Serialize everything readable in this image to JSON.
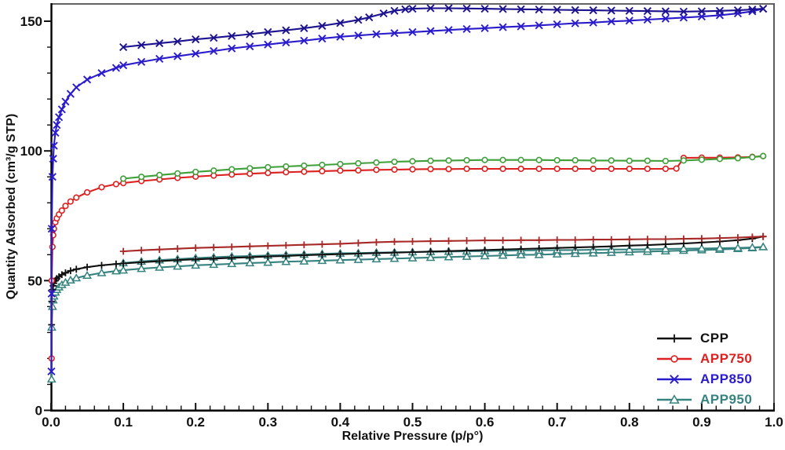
{
  "figure": {
    "xlabel": "Relative Pressure (p/p°)",
    "ylabel": "Quantity Adsorbed (cm³/g STP)"
  },
  "chart_data": {
    "type": "line",
    "title": "",
    "xlabel": "Relative Pressure (p/p°)",
    "ylabel": "Quantity Adsorbed (cm³/g STP)",
    "xlim": [
      0,
      1.0
    ],
    "ylim": [
      0,
      157
    ],
    "x_ticks": [
      0.0,
      0.1,
      0.2,
      0.3,
      0.4,
      0.5,
      0.6,
      0.7,
      0.8,
      0.9,
      1.0
    ],
    "x_tick_labels": [
      "0.0",
      "0.1",
      "0.2",
      "0.3",
      "0.4",
      "0.5",
      "0.6",
      "0.7",
      "0.8",
      "0.9",
      "1.0"
    ],
    "y_ticks": [
      0,
      50,
      100,
      150
    ],
    "y_tick_labels": [
      "0",
      "50",
      "100",
      "150"
    ],
    "x_minor_step": 0.02,
    "y_minor_step": 10,
    "grid": false,
    "axis_color": "#000000",
    "frame_color": "#4d4d4d",
    "legend_position": "lower-right",
    "legend": [
      {
        "label": "CPP",
        "color": "#111111",
        "marker": "plus"
      },
      {
        "label": "APP750",
        "color": "#dd2020",
        "marker": "circle"
      },
      {
        "label": "APP850",
        "color": "#2a1ccc",
        "marker": "x"
      },
      {
        "label": "APP950",
        "color": "#35827f",
        "marker": "triangle"
      }
    ],
    "series": [
      {
        "name": "APP950-adsorption",
        "branch": "adsorption",
        "color": "#35827f",
        "marker": "triangle",
        "x": [
          0.0008,
          0.001,
          0.002,
          0.003,
          0.004,
          0.006,
          0.008,
          0.011,
          0.015,
          0.02,
          0.027,
          0.035,
          0.05,
          0.07,
          0.09,
          0.1,
          0.125,
          0.15,
          0.175,
          0.2,
          0.225,
          0.25,
          0.275,
          0.3,
          0.325,
          0.35,
          0.375,
          0.4,
          0.425,
          0.45,
          0.475,
          0.5,
          0.525,
          0.55,
          0.575,
          0.6,
          0.625,
          0.65,
          0.675,
          0.7,
          0.725,
          0.75,
          0.775,
          0.8,
          0.825,
          0.85,
          0.875,
          0.9,
          0.925,
          0.95,
          0.97,
          0.985
        ],
        "y": [
          12,
          32,
          40,
          42.5,
          44,
          45.5,
          46.5,
          47.5,
          48.4,
          49.3,
          50.2,
          51,
          52,
          53,
          53.7,
          54,
          54.6,
          55.1,
          55.5,
          55.9,
          56.2,
          56.5,
          56.8,
          57,
          57.3,
          57.5,
          57.7,
          57.9,
          58.1,
          58.3,
          58.5,
          58.7,
          58.9,
          59.1,
          59.3,
          59.5,
          59.7,
          59.9,
          60,
          60.2,
          60.4,
          60.6,
          60.8,
          61,
          61.2,
          61.4,
          61.6,
          61.8,
          62,
          62.3,
          62.6,
          63
        ]
      },
      {
        "name": "APP950-desorption",
        "branch": "desorption",
        "color": "#35827f",
        "marker": "triangle",
        "x": [
          0.1,
          0.125,
          0.15,
          0.175,
          0.2,
          0.225,
          0.25,
          0.275,
          0.3,
          0.325,
          0.35,
          0.375,
          0.4,
          0.425,
          0.45,
          0.475,
          0.5,
          0.525,
          0.55,
          0.575,
          0.6,
          0.625,
          0.65,
          0.675,
          0.7,
          0.725,
          0.75,
          0.775,
          0.8,
          0.825,
          0.85,
          0.875,
          0.9,
          0.925,
          0.95,
          0.97,
          0.985
        ],
        "y": [
          56.8,
          57.4,
          57.9,
          58.3,
          58.7,
          59,
          59.3,
          59.5,
          59.7,
          59.9,
          60.1,
          60.3,
          60.5,
          60.6,
          60.8,
          60.9,
          61,
          61.1,
          61.2,
          61.3,
          61.4,
          61.5,
          61.6,
          61.7,
          61.8,
          61.8,
          61.9,
          62,
          62,
          62.1,
          62.2,
          62.3,
          62.4,
          62.5,
          62.6,
          62.8,
          63
        ]
      },
      {
        "name": "CPP-adsorption",
        "branch": "adsorption",
        "color": "#111111",
        "marker": "plus",
        "x": [
          0.0008,
          0.001,
          0.002,
          0.003,
          0.004,
          0.006,
          0.008,
          0.011,
          0.015,
          0.02,
          0.027,
          0.035,
          0.05,
          0.07,
          0.09,
          0.1,
          0.125,
          0.15,
          0.175,
          0.2,
          0.225,
          0.25,
          0.275,
          0.3,
          0.325,
          0.35,
          0.375,
          0.4,
          0.425,
          0.45,
          0.475,
          0.5,
          0.525,
          0.55,
          0.575,
          0.6,
          0.625,
          0.65,
          0.675,
          0.7,
          0.725,
          0.75,
          0.775,
          0.8,
          0.825,
          0.85,
          0.875,
          0.9,
          0.925,
          0.95,
          0.97,
          0.985
        ],
        "y": [
          33,
          42,
          46.5,
          48,
          49,
          50,
          50.8,
          51.5,
          52.3,
          53,
          53.8,
          54.4,
          55.2,
          55.9,
          56.4,
          56.6,
          57.1,
          57.5,
          57.9,
          58.2,
          58.5,
          58.8,
          59,
          59.3,
          59.5,
          59.8,
          60,
          60.2,
          60.4,
          60.6,
          60.8,
          61,
          61.2,
          61.4,
          61.6,
          61.8,
          62,
          62.2,
          62.4,
          62.6,
          62.8,
          63,
          63.2,
          63.5,
          63.7,
          64,
          64.3,
          64.7,
          65.1,
          65.6,
          66.2,
          67
        ]
      },
      {
        "name": "CPP-desorption",
        "branch": "desorption",
        "color": "#a82a28",
        "marker": "plus",
        "x": [
          0.1,
          0.125,
          0.15,
          0.175,
          0.2,
          0.225,
          0.25,
          0.275,
          0.3,
          0.325,
          0.35,
          0.375,
          0.4,
          0.425,
          0.45,
          0.475,
          0.5,
          0.525,
          0.55,
          0.575,
          0.6,
          0.625,
          0.65,
          0.675,
          0.7,
          0.725,
          0.75,
          0.775,
          0.8,
          0.825,
          0.85,
          0.875,
          0.9,
          0.925,
          0.95,
          0.97,
          0.985
        ],
        "y": [
          61.3,
          61.7,
          62,
          62.3,
          62.6,
          62.8,
          63,
          63.2,
          63.4,
          63.6,
          63.8,
          64,
          64.2,
          64.5,
          64.8,
          65,
          65.1,
          65.2,
          65.3,
          65.4,
          65.5,
          65.5,
          65.6,
          65.6,
          65.7,
          65.7,
          65.8,
          65.8,
          65.9,
          66,
          66,
          66.1,
          66.2,
          66.4,
          66.6,
          66.8,
          67
        ]
      },
      {
        "name": "APP750-adsorption",
        "branch": "adsorption",
        "color": "#dd2020",
        "marker": "circle",
        "x": [
          0.0008,
          0.001,
          0.002,
          0.003,
          0.004,
          0.006,
          0.008,
          0.011,
          0.015,
          0.02,
          0.027,
          0.035,
          0.05,
          0.07,
          0.09,
          0.1,
          0.125,
          0.15,
          0.175,
          0.2,
          0.225,
          0.25,
          0.275,
          0.3,
          0.325,
          0.35,
          0.375,
          0.4,
          0.425,
          0.45,
          0.475,
          0.5,
          0.525,
          0.55,
          0.575,
          0.6,
          0.625,
          0.65,
          0.675,
          0.7,
          0.725,
          0.75,
          0.775,
          0.8,
          0.825,
          0.85,
          0.865,
          0.875,
          0.9,
          0.925,
          0.95,
          0.97,
          0.985
        ],
        "y": [
          20,
          50,
          63,
          67.5,
          70,
          72.5,
          74,
          75.5,
          77,
          78.8,
          80.5,
          82,
          84,
          86,
          87.2,
          87.6,
          88.4,
          89,
          89.6,
          90.1,
          90.5,
          90.9,
          91.2,
          91.5,
          91.8,
          92,
          92.2,
          92.4,
          92.5,
          92.7,
          92.8,
          92.9,
          93,
          93,
          93.1,
          93.1,
          93.1,
          93.1,
          93.1,
          93.1,
          93.1,
          93.1,
          93.1,
          93.1,
          93.1,
          93.1,
          93.2,
          97.3,
          97.4,
          97.4,
          97.5,
          97.7,
          98
        ]
      },
      {
        "name": "APP750-desorption",
        "branch": "desorption",
        "color": "#3fa03a",
        "marker": "circle",
        "x": [
          0.1,
          0.125,
          0.15,
          0.175,
          0.2,
          0.225,
          0.25,
          0.275,
          0.3,
          0.325,
          0.35,
          0.375,
          0.4,
          0.425,
          0.45,
          0.475,
          0.5,
          0.525,
          0.55,
          0.575,
          0.6,
          0.625,
          0.65,
          0.675,
          0.7,
          0.725,
          0.75,
          0.775,
          0.8,
          0.825,
          0.85,
          0.875,
          0.9,
          0.925,
          0.95,
          0.97,
          0.985
        ],
        "y": [
          89.3,
          90,
          90.7,
          91.3,
          91.9,
          92.4,
          92.9,
          93.3,
          93.7,
          94,
          94.3,
          94.6,
          94.9,
          95.2,
          95.5,
          95.8,
          96,
          96.2,
          96.3,
          96.4,
          96.5,
          96.5,
          96.5,
          96.5,
          96.4,
          96.4,
          96.3,
          96.3,
          96.2,
          96.2,
          96.1,
          96.3,
          96.6,
          96.9,
          97.2,
          97.6,
          98
        ]
      },
      {
        "name": "APP850-adsorption",
        "branch": "adsorption",
        "color": "#2a1ccc",
        "marker": "x",
        "x": [
          0.0005,
          0.0008,
          0.001,
          0.002,
          0.003,
          0.004,
          0.006,
          0.008,
          0.011,
          0.015,
          0.02,
          0.027,
          0.035,
          0.05,
          0.07,
          0.09,
          0.1,
          0.125,
          0.15,
          0.175,
          0.2,
          0.225,
          0.25,
          0.275,
          0.3,
          0.325,
          0.35,
          0.375,
          0.4,
          0.425,
          0.45,
          0.475,
          0.5,
          0.525,
          0.55,
          0.575,
          0.6,
          0.625,
          0.65,
          0.675,
          0.7,
          0.725,
          0.75,
          0.775,
          0.8,
          0.825,
          0.85,
          0.875,
          0.9,
          0.925,
          0.95,
          0.97,
          0.985
        ],
        "y": [
          15,
          45,
          70,
          90,
          97,
          102,
          107,
          110,
          113,
          116,
          119,
          122,
          124.5,
          127.5,
          130,
          132,
          133,
          134.3,
          135.5,
          136.5,
          137.5,
          138.5,
          139.5,
          140.3,
          141,
          141.8,
          142.5,
          143.3,
          144,
          144.5,
          145,
          145.4,
          145.8,
          146.2,
          146.6,
          147,
          147.3,
          147.7,
          148,
          148.4,
          148.8,
          149.2,
          149.5,
          149.9,
          150.2,
          150.6,
          151,
          151.4,
          151.8,
          152.3,
          153,
          153.8,
          154.8
        ]
      },
      {
        "name": "APP850-desorption",
        "branch": "desorption",
        "color": "#1c128f",
        "marker": "x",
        "x": [
          0.1,
          0.125,
          0.15,
          0.175,
          0.2,
          0.225,
          0.25,
          0.275,
          0.3,
          0.325,
          0.35,
          0.375,
          0.4,
          0.425,
          0.44,
          0.46,
          0.475,
          0.49,
          0.5,
          0.525,
          0.55,
          0.575,
          0.6,
          0.625,
          0.65,
          0.675,
          0.7,
          0.725,
          0.75,
          0.775,
          0.8,
          0.825,
          0.85,
          0.875,
          0.9,
          0.925,
          0.95,
          0.97,
          0.985
        ],
        "y": [
          140,
          140.8,
          141.5,
          142.2,
          143,
          143.6,
          144.3,
          145,
          145.8,
          146.5,
          147.3,
          148.2,
          149.3,
          150.5,
          151.5,
          153,
          154,
          154.6,
          154.8,
          155,
          155,
          154.9,
          154.8,
          154.7,
          154.6,
          154.5,
          154.4,
          154.3,
          154.2,
          154.1,
          154,
          153.9,
          153.8,
          153.7,
          153.8,
          154,
          154.2,
          154.5,
          154.8
        ]
      }
    ]
  }
}
